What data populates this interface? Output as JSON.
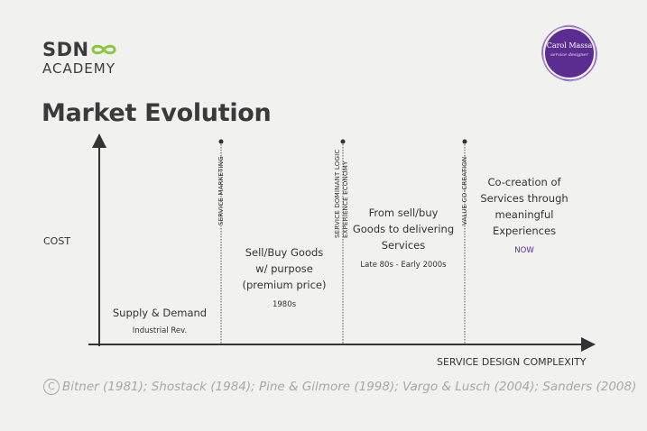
{
  "logo": {
    "brand": "SDN",
    "academy": "ACADEMY"
  },
  "badge": {
    "name": "Carol Massa",
    "subtitle": "service designer"
  },
  "title": "Market Evolution",
  "axes": {
    "y_label": "COST",
    "x_label": "SERVICE DESIGN COMPLEXITY"
  },
  "dividers": {
    "d1": [
      "SERVICE MARKETING"
    ],
    "d2": [
      "SERVICE DOMINANT LOGIC",
      "EXPERIENCE ECONOMY"
    ],
    "d3": [
      "VALUE CO-CREATION"
    ]
  },
  "stages": [
    {
      "lines": [
        "Supply & Demand"
      ],
      "sub": "Industrial Rev."
    },
    {
      "lines": [
        "Sell/Buy Goods",
        "w/ purpose",
        "(premium price)"
      ],
      "sub": "1980s"
    },
    {
      "lines": [
        "From sell/buy",
        "Goods to delivering",
        "Services"
      ],
      "sub": "Late 80s - Early 2000s"
    },
    {
      "lines": [
        "Co-creation of",
        "Services through",
        "meaningful",
        "Experiences"
      ],
      "sub": "NOW"
    }
  ],
  "citation": "Bitner (1981); Shostack (1984); Pine & Gilmore (1998); Vargo & Lusch (2004); Sanders (2008)",
  "colors": {
    "accent_green": "#8cc63f",
    "purple": "#5c2d91",
    "text": "#333333",
    "citation": "#a8a8a8"
  }
}
